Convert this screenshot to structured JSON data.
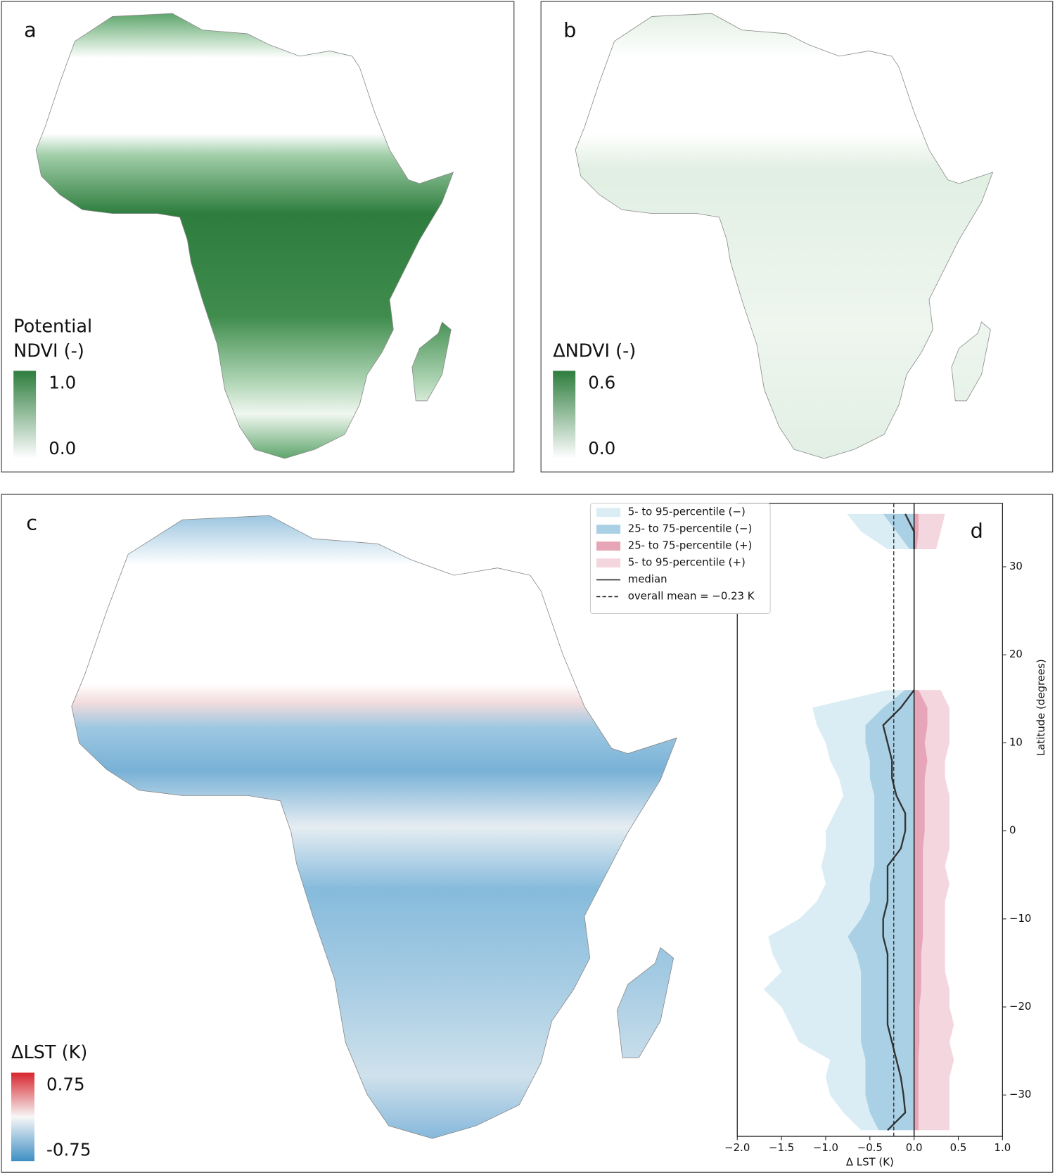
{
  "maps": [
    {
      "label": "a",
      "legend_title": [
        "Potential",
        "NDVI (-)"
      ],
      "legend_max": "1.0",
      "legend_min": "0.0"
    },
    {
      "label": "b",
      "legend_title": [
        "ΔNDVI (-)"
      ],
      "legend_max": "0.6",
      "legend_min": "0.0"
    },
    {
      "label": "c",
      "legend_title": [
        "ΔLST (K)"
      ],
      "legend_max": "0.75",
      "legend_min": "-0.75"
    }
  ],
  "chart_data": {
    "type": "profile",
    "panel_label": "d",
    "x_label": "Δ LST (K)",
    "y_label": "Latitude (degrees)",
    "xlim": [
      -2,
      1
    ],
    "xticks": [
      {
        "value": -2,
        "label": "−2.0"
      },
      {
        "value": -1.5,
        "label": "−1.5"
      },
      {
        "value": -1,
        "label": "−1.0"
      },
      {
        "value": -0.5,
        "label": "−0.5"
      },
      {
        "value": 0,
        "label": "0.0"
      },
      {
        "value": 0.5,
        "label": "0.5"
      },
      {
        "value": 1,
        "label": "1.0"
      }
    ],
    "ylim": [
      -34.7,
      37.2
    ],
    "yticks": [
      {
        "value": -30,
        "label": "−30"
      },
      {
        "value": -20,
        "label": "−20"
      },
      {
        "value": -10,
        "label": "−10"
      },
      0,
      10,
      20,
      30
    ],
    "y": [
      36,
      34,
      32,
      30,
      28,
      26,
      24,
      22,
      20,
      18,
      16,
      14,
      12,
      10,
      8,
      6,
      4,
      2,
      0,
      -2,
      -4,
      -6,
      -8,
      -10,
      -12,
      -14,
      -16,
      -18,
      -20,
      -22,
      -24,
      -26,
      -28,
      -30,
      -32,
      -34
    ],
    "series": [
      {
        "name": "5- to 95-percentile (−)",
        "type": "area",
        "color": "#dbedf4",
        "values": [
          -0.76,
          -0.6,
          -0.3,
          null,
          null,
          null,
          null,
          null,
          null,
          null,
          -0.3,
          -1.15,
          -1.1,
          -1.0,
          -0.95,
          -0.85,
          -0.8,
          -0.9,
          -1.0,
          -1.0,
          -1.05,
          -1.0,
          -1.1,
          -1.3,
          -1.65,
          -1.6,
          -1.5,
          -1.7,
          -1.5,
          -1.4,
          -1.3,
          -0.95,
          -1.0,
          -0.95,
          -0.8,
          -0.6
        ]
      },
      {
        "name": "25- to 75-percentile (−)",
        "type": "area",
        "color": "#a9d0e4",
        "values": [
          -0.35,
          -0.2,
          -0.05,
          null,
          null,
          null,
          null,
          null,
          null,
          null,
          -0.1,
          -0.35,
          -0.55,
          -0.55,
          -0.5,
          -0.5,
          -0.45,
          -0.45,
          -0.45,
          -0.45,
          -0.45,
          -0.5,
          -0.5,
          -0.6,
          -0.75,
          -0.65,
          -0.6,
          -0.6,
          -0.6,
          -0.6,
          -0.6,
          -0.55,
          -0.55,
          -0.55,
          -0.5,
          -0.4
        ]
      },
      {
        "name": "25- to 75-percentile (+)",
        "type": "area",
        "color": "#e7a5b8",
        "values": [
          0.05,
          0.05,
          0.03,
          null,
          null,
          null,
          null,
          null,
          null,
          null,
          0.05,
          0.15,
          0.15,
          0.12,
          0.15,
          0.12,
          0.12,
          0.12,
          0.12,
          0.1,
          0.1,
          0.1,
          0.1,
          0.1,
          0.1,
          0.08,
          0.08,
          0.08,
          0.06,
          0.06,
          0.06,
          0.05,
          0.05,
          0.05,
          0.05,
          0.05
        ]
      },
      {
        "name": "5- to 95-percentile (+)",
        "type": "area",
        "color": "#f4d6df",
        "values": [
          0.35,
          0.3,
          0.25,
          null,
          null,
          null,
          null,
          null,
          null,
          null,
          0.3,
          0.4,
          0.4,
          0.4,
          0.35,
          0.35,
          0.4,
          0.4,
          0.4,
          0.4,
          0.35,
          0.4,
          0.35,
          0.35,
          0.35,
          0.35,
          0.35,
          0.4,
          0.4,
          0.45,
          0.4,
          0.45,
          0.4,
          0.4,
          0.4,
          0.4
        ]
      },
      {
        "name": "median",
        "type": "line",
        "color": "#333333",
        "values": [
          -0.1,
          0,
          0,
          null,
          null,
          null,
          null,
          null,
          null,
          null,
          0,
          -0.15,
          -0.35,
          -0.3,
          -0.25,
          -0.25,
          -0.2,
          -0.1,
          -0.1,
          -0.15,
          -0.3,
          -0.3,
          -0.3,
          -0.35,
          -0.35,
          -0.3,
          -0.3,
          -0.3,
          -0.3,
          -0.3,
          -0.25,
          -0.2,
          -0.15,
          -0.12,
          -0.1,
          -0.3
        ]
      }
    ],
    "mean": {
      "name": "overall mean = −0.23 K",
      "value": -0.23,
      "color": "#222222"
    }
  }
}
